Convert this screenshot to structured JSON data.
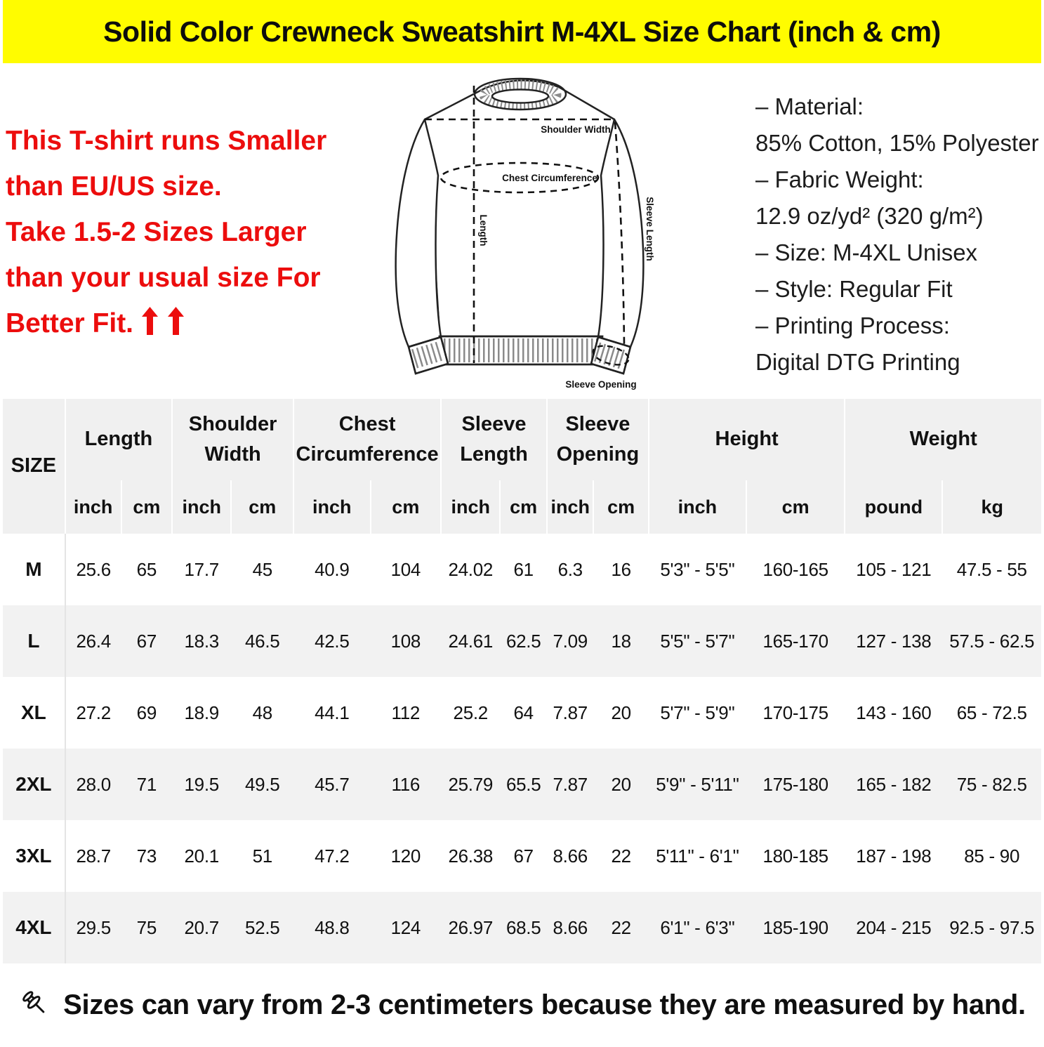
{
  "banner": {
    "title": "Solid Color Crewneck Sweatshirt M-4XL Size Chart (inch & cm)",
    "bg_color": "#FFFC00",
    "text_color": "#0D0D0D"
  },
  "warning": {
    "color": "#EC0D0D",
    "lines": [
      "This T-shirt runs Smaller",
      "than EU/US size.",
      "Take 1.5-2 Sizes Larger",
      "than your usual size For",
      "Better Fit."
    ],
    "arrow_icon": "red-up-arrow",
    "arrow_count": 2
  },
  "diagram": {
    "labels": {
      "shoulder_width": "Shoulder Width",
      "chest_circumference": "Chest Circumference",
      "length": "Length",
      "sleeve_length": "Sleeve Length",
      "sleeve_opening": "Sleeve Opening"
    }
  },
  "specs": {
    "lines": [
      "– Material:",
      "85% Cotton, 15% Polyester",
      "– Fabric Weight:",
      "12.9 oz/yd² (320 g/m²)",
      "– Size: M-4XL Unisex",
      "– Style: Regular Fit",
      "– Printing Process:",
      "Digital DTG Printing"
    ]
  },
  "table": {
    "size_header": "SIZE",
    "header_bg": "#F0F0F0",
    "stripe_color": "#F2F2F2",
    "groups": [
      {
        "label": "Length",
        "units": [
          "inch",
          "cm"
        ]
      },
      {
        "label": "Shoulder Width",
        "units": [
          "inch",
          "cm"
        ]
      },
      {
        "label": "Chest Circumference",
        "units": [
          "inch",
          "cm"
        ]
      },
      {
        "label": "Sleeve Length",
        "units": [
          "inch",
          "cm"
        ]
      },
      {
        "label": "Sleeve Opening",
        "units": [
          "inch",
          "cm"
        ]
      },
      {
        "label": "Height",
        "units": [
          "inch",
          "cm"
        ]
      },
      {
        "label": "Weight",
        "units": [
          "pound",
          "kg"
        ]
      }
    ],
    "rows": [
      {
        "size": "M",
        "values": [
          "25.6",
          "65",
          "17.7",
          "45",
          "40.9",
          "104",
          "24.02",
          "61",
          "6.3",
          "16",
          "5'3\" - 5'5\"",
          "160-165",
          "105 - 121",
          "47.5 - 55"
        ]
      },
      {
        "size": "L",
        "values": [
          "26.4",
          "67",
          "18.3",
          "46.5",
          "42.5",
          "108",
          "24.61",
          "62.5",
          "7.09",
          "18",
          "5'5\" - 5'7\"",
          "165-170",
          "127 - 138",
          "57.5 - 62.5"
        ]
      },
      {
        "size": "XL",
        "values": [
          "27.2",
          "69",
          "18.9",
          "48",
          "44.1",
          "112",
          "25.2",
          "64",
          "7.87",
          "20",
          "5'7\" - 5'9\"",
          "170-175",
          "143 - 160",
          "65 - 72.5"
        ]
      },
      {
        "size": "2XL",
        "values": [
          "28.0",
          "71",
          "19.5",
          "49.5",
          "45.7",
          "116",
          "25.79",
          "65.5",
          "7.87",
          "20",
          "5'9\" - 5'11\"",
          "175-180",
          "165 - 182",
          "75 - 82.5"
        ]
      },
      {
        "size": "3XL",
        "values": [
          "28.7",
          "73",
          "20.1",
          "51",
          "47.2",
          "120",
          "26.38",
          "67",
          "8.66",
          "22",
          "5'11\" - 6'1\"",
          "180-185",
          "187 - 198",
          "85 - 90"
        ]
      },
      {
        "size": "4XL",
        "values": [
          "29.5",
          "75",
          "20.7",
          "52.5",
          "48.8",
          "124",
          "26.97",
          "68.5",
          "8.66",
          "22",
          "6'1\" - 6'3\"",
          "185-190",
          "204 - 215",
          "92.5 - 97.5"
        ]
      }
    ]
  },
  "footer": {
    "icon": "pushpin-icon",
    "note": "Sizes can vary from 2-3 centimeters because they are measured by hand."
  }
}
